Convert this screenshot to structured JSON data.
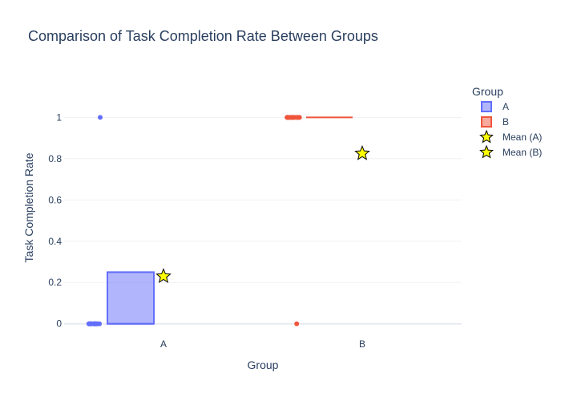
{
  "chart_data": {
    "type": "box",
    "title": "Comparison of Task Completion Rate Between Groups",
    "xlabel": "Group",
    "ylabel": "Task Completion Rate",
    "categories": [
      "A",
      "B"
    ],
    "ylim": [
      -0.04,
      1.18
    ],
    "yticks": [
      0,
      0.2,
      0.4,
      0.6,
      0.8,
      1
    ],
    "ytick_labels": [
      "0",
      "0.2",
      "0.4",
      "0.6",
      "0.8",
      "1"
    ],
    "grid": true,
    "legend_title": "Group",
    "legend_position": "right",
    "series": [
      {
        "name": "A",
        "category": "A",
        "color": "#636efa",
        "fill": "rgba(99,110,250,0.5)",
        "q1": 0,
        "median": 0,
        "q3": 0.25,
        "whisker_low": 0,
        "whisker_high": 0.25,
        "points_y": [
          0,
          0,
          0,
          0,
          0,
          0,
          0,
          0,
          0,
          0,
          0,
          0,
          0,
          0,
          0,
          0,
          0,
          0,
          0,
          0,
          0,
          0,
          1
        ],
        "mean": 0.23
      },
      {
        "name": "B",
        "category": "B",
        "color": "#ef553b",
        "fill": "rgba(239,85,59,0.5)",
        "q1": 1,
        "median": 1,
        "q3": 1,
        "whisker_low": 1,
        "whisker_high": 1,
        "points_y": [
          1,
          1,
          1,
          1,
          1,
          1,
          1,
          1,
          1,
          1,
          1,
          1,
          1,
          1,
          1,
          1,
          1,
          1,
          1,
          1,
          1,
          1,
          0
        ],
        "mean": 0.825
      }
    ],
    "means": [
      {
        "name": "Mean (A)",
        "category": "A",
        "value": 0.23,
        "color": "#ffff00"
      },
      {
        "name": "Mean (B)",
        "category": "B",
        "value": 0.825,
        "color": "#ffff00"
      }
    ]
  }
}
